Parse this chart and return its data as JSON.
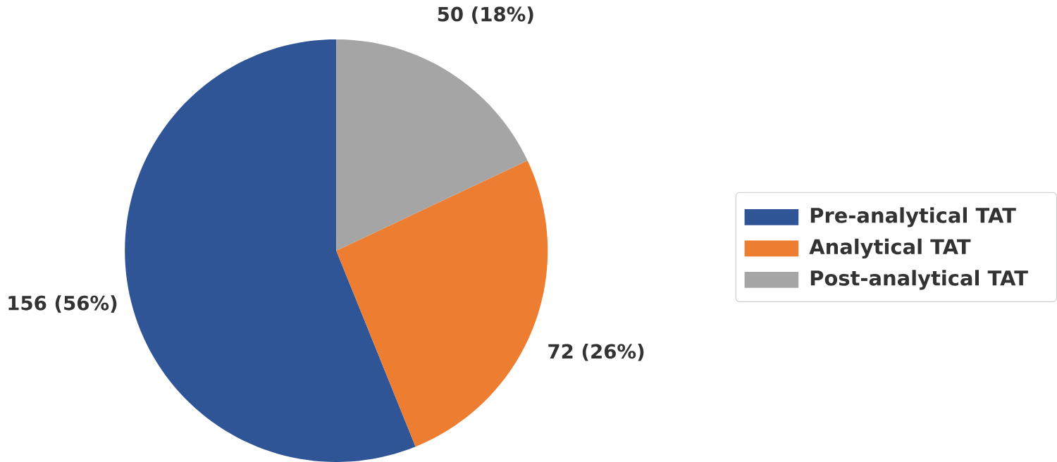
{
  "chart_data": {
    "type": "pie",
    "categories": [
      "Pre-analytical TAT",
      "Analytical TAT",
      "Post-analytical TAT"
    ],
    "values": [
      156,
      72,
      50
    ],
    "colors": [
      "#2f5597",
      "#ed7d31",
      "#a5a5a5"
    ],
    "value_labels": [
      "156 (56%)",
      "72 (26%)",
      "50 (18%)"
    ],
    "legend": "right"
  }
}
